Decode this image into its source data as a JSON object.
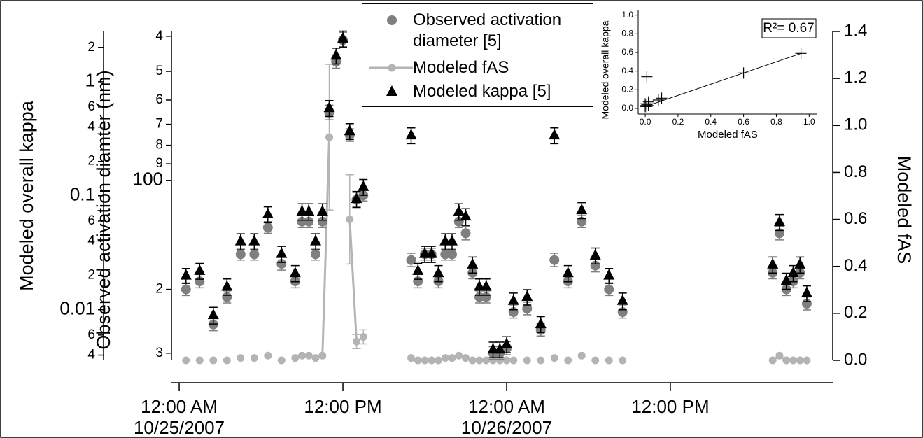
{
  "chart_data": [
    {
      "type": "scatter",
      "x": [
        "2007-10-25T00:30",
        "2007-10-25T01:30",
        "2007-10-25T02:30",
        "2007-10-25T03:30",
        "2007-10-25T04:30",
        "2007-10-25T05:30",
        "2007-10-25T06:30",
        "2007-10-25T07:30",
        "2007-10-25T08:30",
        "2007-10-25T09:00",
        "2007-10-25T09:30",
        "2007-10-25T10:00",
        "2007-10-25T10:30",
        "2007-10-25T11:00",
        "2007-10-25T11:30",
        "2007-10-25T12:00",
        "2007-10-25T12:30",
        "2007-10-25T13:00",
        "2007-10-25T13:30",
        "2007-10-25T17:00",
        "2007-10-25T17:30",
        "2007-10-25T18:00",
        "2007-10-25T18:30",
        "2007-10-25T19:00",
        "2007-10-25T19:30",
        "2007-10-25T20:00",
        "2007-10-25T20:30",
        "2007-10-25T21:00",
        "2007-10-25T21:30",
        "2007-10-25T22:00",
        "2007-10-25T22:30",
        "2007-10-25T23:00",
        "2007-10-25T23:30",
        "2007-10-26T00:00",
        "2007-10-26T00:30",
        "2007-10-26T01:30",
        "2007-10-26T02:30",
        "2007-10-26T03:30",
        "2007-10-26T04:30",
        "2007-10-26T05:30",
        "2007-10-26T06:30",
        "2007-10-26T07:30",
        "2007-10-26T08:30",
        "2007-10-26T19:30",
        "2007-10-26T20:00",
        "2007-10-26T20:30",
        "2007-10-26T21:00",
        "2007-10-26T21:30",
        "2007-10-26T22:00"
      ],
      "xlim": [
        "2007-10-24T23:26",
        "2007-10-26T23:54"
      ],
      "xticks": [
        {
          "value": "2007-10-25T00:00",
          "label": [
            "12:00 AM",
            "10/25/2007"
          ]
        },
        {
          "value": "2007-10-25T12:00",
          "label": [
            "12:00 PM"
          ]
        },
        {
          "value": "2007-10-26T00:00",
          "label": [
            "12:00 AM",
            "10/26/2007"
          ]
        },
        {
          "value": "2007-10-26T12:00",
          "label": [
            "12:00 PM"
          ]
        }
      ],
      "ylabel": "Observed activation diamter (nm)",
      "ylim": [
        38.8,
        314
      ],
      "ylog": true,
      "yinverted": true,
      "yticks": [
        {
          "value": 40,
          "label": "4"
        },
        {
          "value": 50,
          "label": "5"
        },
        {
          "value": 60,
          "label": "6"
        },
        {
          "value": 70,
          "label": "7"
        },
        {
          "value": 80,
          "label": "8"
        },
        {
          "value": 90,
          "label": "9"
        },
        100,
        {
          "value": 200,
          "label": "2"
        },
        {
          "value": 300,
          "label": "3"
        }
      ],
      "y2label": "Modeled fAS",
      "y2lim": [
        0,
        1.4
      ],
      "y2ticks": [
        {
          "value": 0,
          "label": "0.0"
        },
        {
          "value": 0.2,
          "label": "0.2"
        },
        {
          "value": 0.4,
          "label": "0.4"
        },
        {
          "value": 0.6,
          "label": "0.6"
        },
        {
          "value": 0.8,
          "label": "0.8"
        },
        {
          "value": 1,
          "label": "1.0"
        },
        {
          "value": 1.2,
          "label": "1.2"
        },
        {
          "value": 1.4,
          "label": "1.4"
        }
      ],
      "y3label": "Modeled overall kappa",
      "y3lim": [
        0.0036,
        2.76
      ],
      "y3log": true,
      "y3ticks": [
        2,
        1,
        {
          "value": 0.6,
          "label": "6"
        },
        {
          "value": 0.4,
          "label": "4"
        },
        {
          "value": 0.2,
          "label": "2"
        },
        0.1,
        {
          "value": 0.06,
          "label": "6"
        },
        {
          "value": 0.04,
          "label": "4"
        },
        {
          "value": 0.02,
          "label": "2"
        },
        0.01,
        {
          "value": 0.006,
          "label": "6"
        },
        {
          "value": 0.004,
          "label": "4"
        }
      ],
      "series": [
        {
          "name": "Observed activation diameter [5]",
          "color": "#7f7f7f",
          "marker": "circle",
          "axis": "y",
          "values": [
            200,
            190,
            250,
            210,
            160,
            160,
            135,
            170,
            190,
            130,
            130,
            160,
            130,
            65,
            47,
            41,
            75,
            113,
            110,
            166,
            190,
            160,
            160,
            190,
            160,
            160,
            130,
            140,
            180,
            210,
            210,
            300,
            300,
            291,
            231,
            226,
            259,
            166,
            190,
            130,
            172,
            200,
            231,
            180,
            140,
            200,
            190,
            180,
            219
          ],
          "errors": [
            8,
            8,
            10,
            8,
            6,
            6,
            5,
            7,
            8,
            5,
            5,
            6,
            5,
            3,
            2,
            2,
            3,
            5,
            4,
            7,
            8,
            6,
            6,
            8,
            6,
            6,
            5,
            6,
            7,
            8,
            8,
            12,
            12,
            12,
            9,
            9,
            10,
            7,
            8,
            5,
            7,
            8,
            9,
            7,
            6,
            8,
            8,
            7,
            9
          ]
        },
        {
          "name": "Modeled fAS",
          "color": "#b4b4b4",
          "marker": "circle-line",
          "axis": "y2",
          "values": [
            0,
            0,
            0,
            0,
            0.01,
            0.01,
            0.02,
            0,
            0.01,
            0.02,
            0.02,
            0.01,
            0.02,
            0.95,
            null,
            null,
            0.6,
            0.08,
            0.1,
            0.01,
            0,
            0,
            0,
            0,
            0.01,
            0.01,
            0.02,
            0.01,
            0,
            0,
            0,
            0,
            0,
            0,
            0,
            0,
            0,
            0.01,
            0,
            0.02,
            0,
            0,
            0,
            0,
            0.02,
            0,
            0,
            0,
            0
          ],
          "errors": [
            null,
            null,
            null,
            null,
            null,
            null,
            null,
            null,
            null,
            null,
            null,
            null,
            null,
            0.31,
            null,
            null,
            0.19,
            0.03,
            0.03,
            null,
            null,
            null,
            null,
            null,
            null,
            null,
            null,
            null,
            null,
            null,
            null,
            null,
            null,
            null,
            null,
            null,
            null,
            null,
            null,
            null,
            null,
            null,
            null,
            null,
            null,
            null,
            null,
            null,
            null
          ]
        },
        {
          "name": "Modeled kappa [5]",
          "color": "#000000",
          "marker": "triangle",
          "axis": "y3",
          "values": [
            0.02,
            0.022,
            0.009,
            0.016,
            0.04,
            0.04,
            0.069,
            0.031,
            0.021,
            0.073,
            0.073,
            0.04,
            0.073,
            0.59,
            1.7,
            2.4,
            0.37,
            0.094,
            0.12,
            0.34,
            0.022,
            0.031,
            0.031,
            0.021,
            0.04,
            0.04,
            0.073,
            0.066,
            0.025,
            0.016,
            0.016,
            0.0045,
            0.0045,
            0.005,
            0.012,
            0.013,
            0.0075,
            0.34,
            0.021,
            0.075,
            0.03,
            0.02,
            0.012,
            0.025,
            0.059,
            0.018,
            0.021,
            0.025,
            0.014
          ],
          "errors": [
            0.003,
            0.0035,
            0.0015,
            0.0026,
            0.0064,
            0.0064,
            0.011,
            0.005,
            0.0034,
            0.012,
            0.012,
            0.0064,
            0.012,
            0.094,
            0.27,
            0.38,
            0.059,
            0.015,
            0.019,
            0.054,
            0.0035,
            0.005,
            0.005,
            0.0034,
            0.0064,
            0.0064,
            0.012,
            0.011,
            0.004,
            0.0026,
            0.0026,
            0.0007,
            0.0007,
            0.0008,
            0.002,
            0.002,
            0.0012,
            0.054,
            0.0034,
            0.012,
            0.0048,
            0.003,
            0.002,
            0.004,
            0.0094,
            0.0029,
            0.0034,
            0.004,
            0.0022
          ]
        }
      ]
    },
    {
      "type": "scatter",
      "xlabel": "Modeled fAS",
      "ylabel": "Modeled overall kappa",
      "annotation": "R²= 0.67",
      "x": [
        0.95,
        0.6,
        0.1,
        0.08,
        0.01,
        0.02,
        0,
        0.01,
        0.02,
        0,
        0.01,
        0.02,
        0
      ],
      "values": [
        0.59,
        0.38,
        0.11,
        0.09,
        0.34,
        0.07,
        0.02,
        0.04,
        0.05,
        0.03,
        0.02,
        0.03,
        0.05
      ],
      "fit": {
        "slope": 0.6,
        "intercept": 0.02
      },
      "color": "#000000",
      "xlim": [
        -0.043,
        1.05
      ],
      "ylim": [
        -0.06,
        1.05
      ],
      "xticks": [
        {
          "value": 0,
          "label": "0.0"
        },
        {
          "value": 0.2,
          "label": "0.2"
        },
        {
          "value": 0.4,
          "label": "0.4"
        },
        {
          "value": 0.6,
          "label": "0.6"
        },
        {
          "value": 0.8,
          "label": "0.8"
        },
        {
          "value": 1,
          "label": "1.0"
        }
      ],
      "yticks": [
        {
          "value": 0,
          "label": "0.0"
        },
        {
          "value": 0.2,
          "label": "0.2"
        },
        {
          "value": 0.4,
          "label": "0.4"
        },
        {
          "value": 0.6,
          "label": "0.6"
        },
        {
          "value": 0.8,
          "label": "0.8"
        },
        {
          "value": 1,
          "label": "1.0"
        }
      ]
    }
  ]
}
